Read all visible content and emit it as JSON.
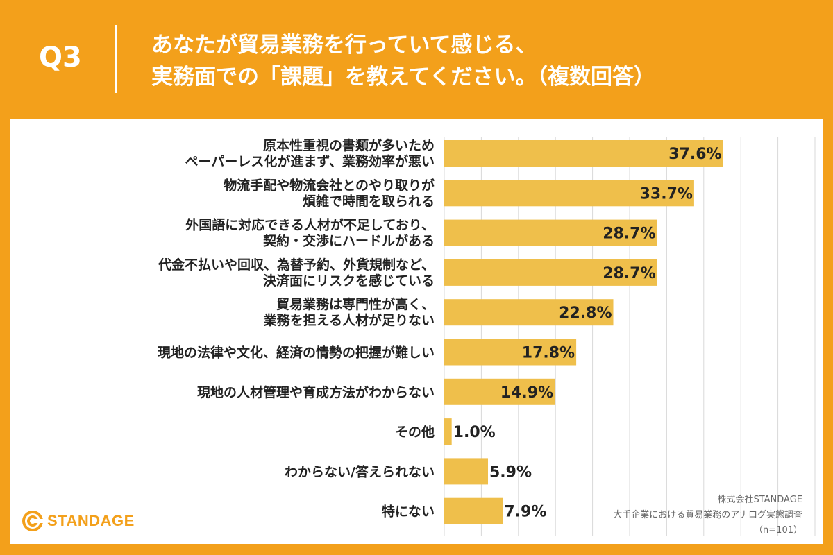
{
  "header": {
    "q_label": "Q3",
    "question_line1": "あなたが貿易業務を行っていて感じる、",
    "question_line2": "実務面での「課題」を教えてください。（複数回答）"
  },
  "colors": {
    "background": "#f3a01b",
    "bar": "#efbf4b",
    "grid": "#d9d9d9",
    "text": "#222222"
  },
  "chart_data": {
    "type": "bar",
    "orientation": "horizontal",
    "categories": [
      [
        "原本性重視の書類が多いため",
        "ペーパーレス化が進まず、業務効率が悪い"
      ],
      [
        "物流手配や物流会社とのやり取りが",
        "煩雑で時間を取られる"
      ],
      [
        "外国語に対応できる人材が不足しており、",
        "契約・交渉にハードルがある"
      ],
      [
        "代金不払いや回収、為替予約、外貨規制など、",
        "決済面にリスクを感じている"
      ],
      [
        "貿易業務は専門性が高く、",
        "業務を担える人材が足りない"
      ],
      [
        "現地の法律や文化、経済の情勢の把握が難しい"
      ],
      [
        "現地の人材管理や育成方法がわからない"
      ],
      [
        "その他"
      ],
      [
        "わからない/答えられない"
      ],
      [
        "特にない"
      ]
    ],
    "values": [
      37.6,
      33.7,
      28.7,
      28.7,
      22.8,
      17.8,
      14.9,
      1.0,
      5.9,
      7.9
    ],
    "value_labels": [
      "37.6%",
      "33.7%",
      "28.7%",
      "28.7%",
      "22.8%",
      "17.8%",
      "14.9%",
      "1.0%",
      "5.9%",
      "7.9%"
    ],
    "xlim": [
      0,
      50
    ],
    "gridlines": [
      0,
      5,
      10,
      15,
      20,
      25,
      30,
      35,
      40,
      45,
      50
    ],
    "title": "",
    "xlabel": "",
    "ylabel": ""
  },
  "footer": {
    "logo_text": "STANDAGE",
    "source_company": "株式会社STANDAGE",
    "source_title": "大手企業における貿易業務のアナログ実態調査",
    "sample_size": "（n=101）"
  }
}
